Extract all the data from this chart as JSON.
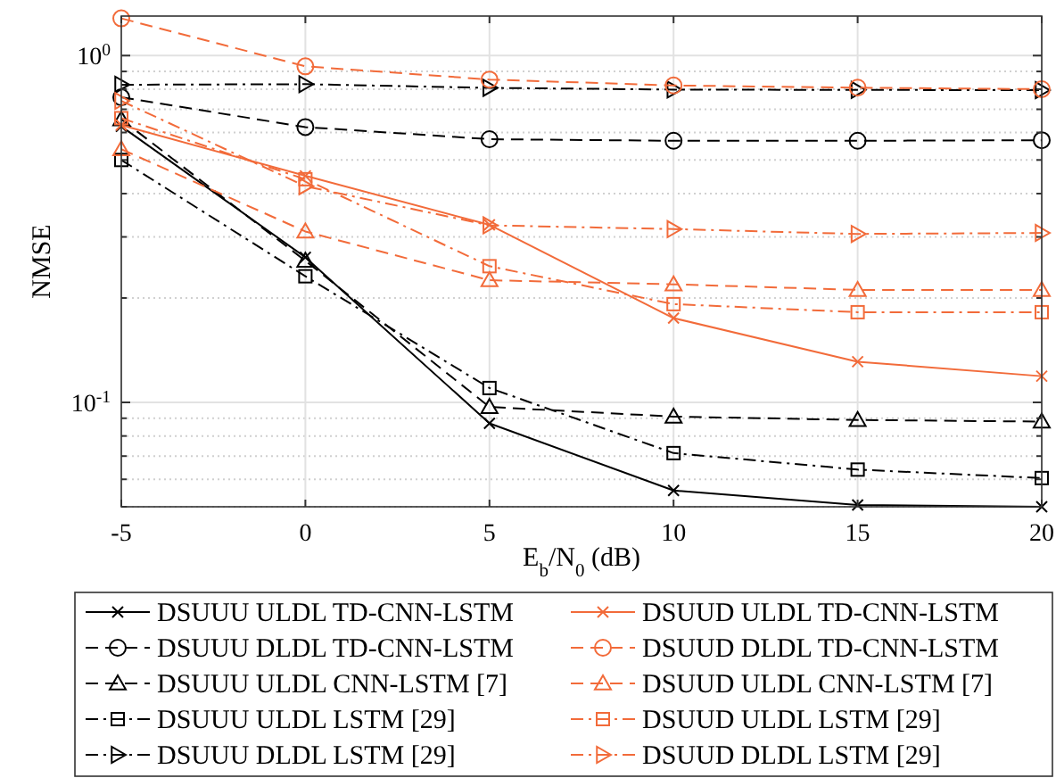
{
  "chart_data": {
    "type": "line",
    "xlabel": "E$_{b}$/N$_{0}$ (dB)",
    "ylabel": "NMSE",
    "x": [
      -5,
      0,
      5,
      10,
      15,
      20
    ],
    "series": [
      {
        "name": "DSUUU ULDL TD-CNN-LSTM",
        "color": "#000000",
        "marker": "cross",
        "line_style": "solid",
        "values": [
          0.625,
          0.262,
          0.087,
          0.0557,
          0.0506,
          0.05
        ]
      },
      {
        "name": "DSUUU DLDL TD-CNN-LSTM",
        "color": "#000000",
        "marker": "circle",
        "line_style": "dashed",
        "values": [
          0.758,
          0.622,
          0.574,
          0.568,
          0.568,
          0.57
        ]
      },
      {
        "name": "DSUUU ULDL CNN-LSTM [7]",
        "color": "#000000",
        "marker": "triangle",
        "line_style": "dashed",
        "values": [
          0.655,
          0.256,
          0.097,
          0.091,
          0.089,
          0.088
        ]
      },
      {
        "name": "DSUUU ULDL LSTM [29]",
        "color": "#000000",
        "marker": "square",
        "line_style": "dashdot",
        "values": [
          0.5,
          0.231,
          0.11,
          0.0714,
          0.064,
          0.0605
        ]
      },
      {
        "name": "DSUUU DLDL LSTM [29]",
        "color": "#000000",
        "marker": "triangle-right",
        "line_style": "dashdot",
        "values": [
          0.824,
          0.827,
          0.807,
          0.798,
          0.796,
          0.795
        ]
      },
      {
        "name": "DSUUD ULDL TD-CNN-LSTM",
        "color": "#f26b3a",
        "marker": "cross",
        "line_style": "solid",
        "values": [
          0.63,
          0.45,
          0.325,
          0.175,
          0.131,
          0.119
        ]
      },
      {
        "name": "DSUUD DLDL TD-CNN-LSTM",
        "color": "#f26b3a",
        "marker": "circle",
        "line_style": "dashed",
        "values": [
          1.28,
          0.931,
          0.853,
          0.82,
          0.808,
          0.8
        ]
      },
      {
        "name": "DSUUD ULDL CNN-LSTM [7]",
        "color": "#f26b3a",
        "marker": "triangle",
        "line_style": "dashed",
        "values": [
          0.537,
          0.311,
          0.225,
          0.219,
          0.211,
          0.211
        ]
      },
      {
        "name": "DSUUD ULDL LSTM [29]",
        "color": "#f26b3a",
        "marker": "square",
        "line_style": "dashdot",
        "values": [
          0.66,
          0.44,
          0.247,
          0.192,
          0.182,
          0.182
        ]
      },
      {
        "name": "DSUUD DLDL LSTM [29]",
        "color": "#f26b3a",
        "marker": "triangle-right",
        "line_style": "dashdot",
        "values": [
          0.74,
          0.42,
          0.324,
          0.316,
          0.306,
          0.308
        ]
      }
    ],
    "xlim": [
      -5,
      20
    ],
    "xticks": [
      -5,
      0,
      5,
      10,
      15,
      20
    ],
    "log": "y",
    "ylim": [
      0.05,
      1.3
    ],
    "yticks": [
      {
        "value": 0.05,
        "label": null
      },
      {
        "value": 0.06,
        "label": null
      },
      {
        "value": 0.07,
        "label": null
      },
      {
        "value": 0.08,
        "label": null
      },
      {
        "value": 0.09,
        "label": null
      },
      {
        "value": 0.1,
        "label": "10$^{-1}$"
      },
      {
        "value": 0.2,
        "label": null
      },
      {
        "value": 0.3,
        "label": null
      },
      {
        "value": 0.4,
        "label": null
      },
      {
        "value": 0.5,
        "label": null
      },
      {
        "value": 0.6,
        "label": null
      },
      {
        "value": 0.7,
        "label": null
      },
      {
        "value": 0.8,
        "label": null
      },
      {
        "value": 0.9,
        "label": null
      },
      {
        "value": 1,
        "label": "10$^{0}$"
      }
    ],
    "grid": true,
    "legend": "bottom"
  }
}
